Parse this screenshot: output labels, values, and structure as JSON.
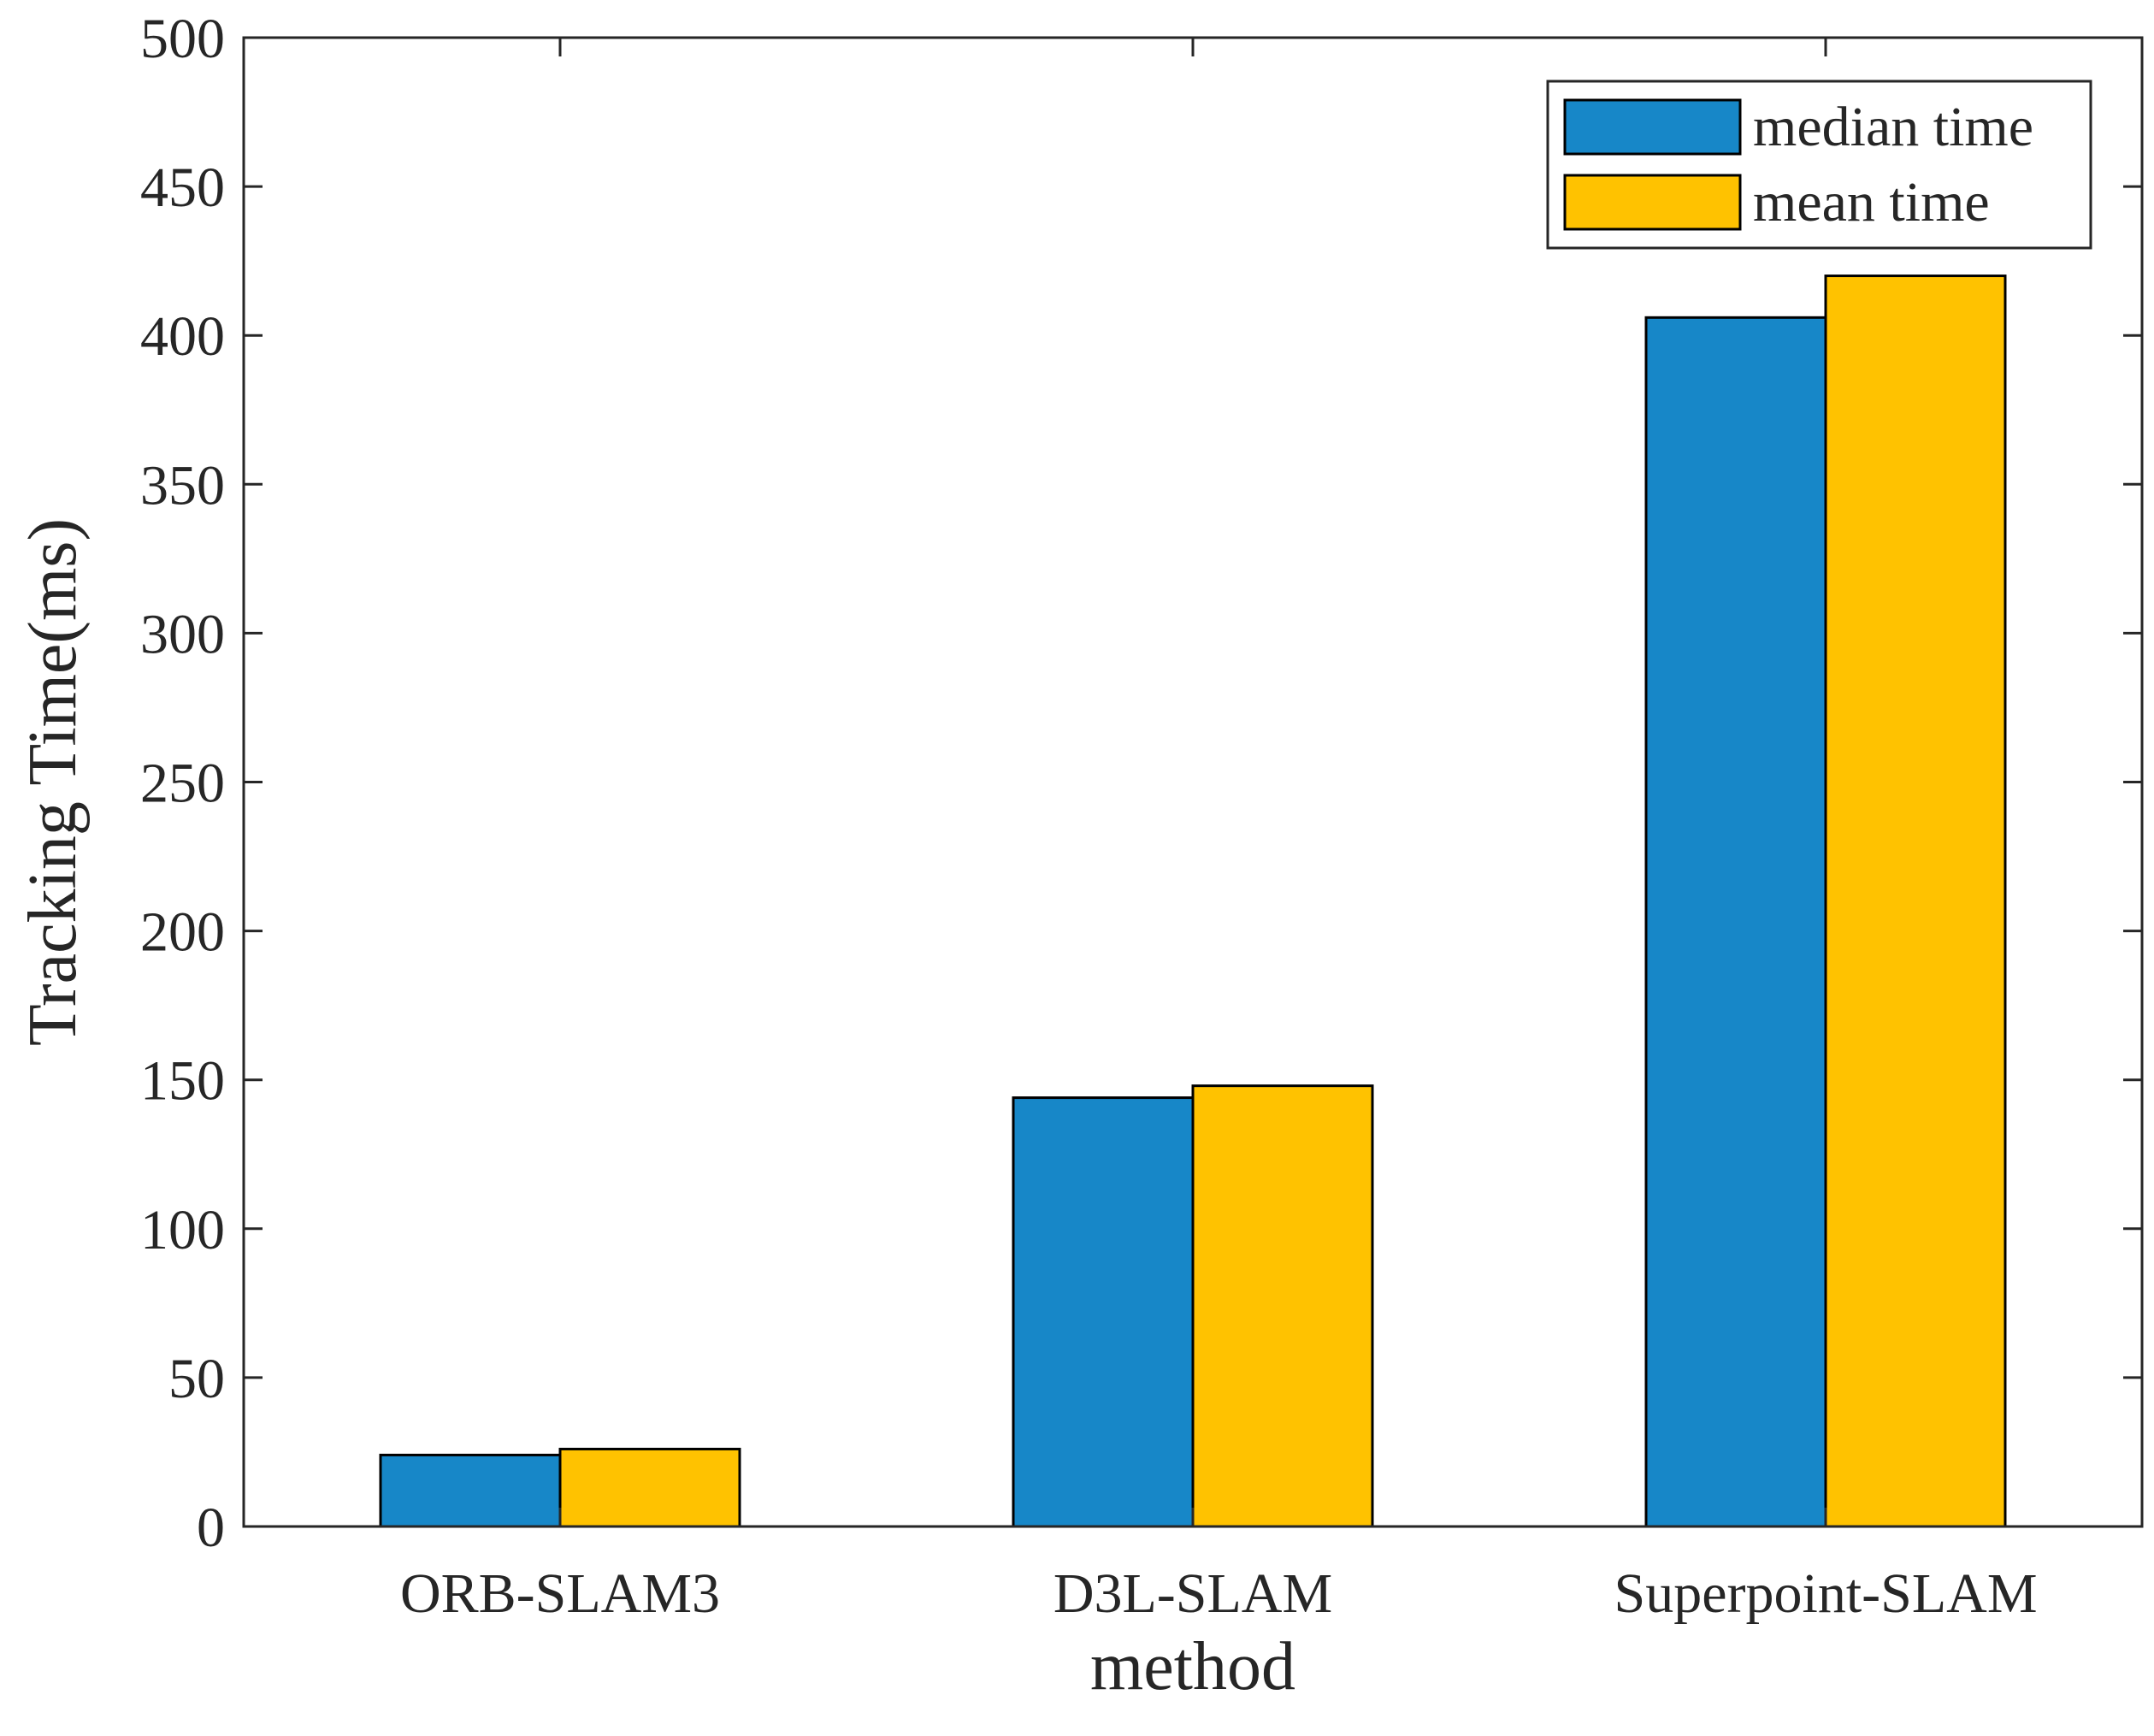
{
  "chart_data": {
    "type": "bar",
    "categories": [
      "ORB-SLAM3",
      "D3L-SLAM",
      "Superpoint-SLAM"
    ],
    "series": [
      {
        "name": "median time",
        "values": [
          24,
          144,
          406
        ],
        "color": "#1787C8"
      },
      {
        "name": "mean time",
        "values": [
          26,
          148,
          420
        ],
        "color": "#FFC200"
      }
    ],
    "title": "",
    "xlabel": "method",
    "ylabel": "Tracking Time(ms)",
    "ylim": [
      0,
      500
    ],
    "yticks": [
      0,
      50,
      100,
      150,
      200,
      250,
      300,
      350,
      400,
      450,
      500
    ],
    "grid": false,
    "legend_position": "top-right"
  }
}
